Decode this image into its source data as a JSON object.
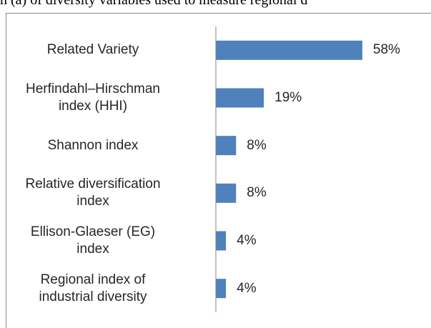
{
  "caption": "n (a) of diversity variables used to measure regional d",
  "chart_data": {
    "type": "bar",
    "orientation": "horizontal",
    "categories": [
      "Related Variety",
      "Herfindahl–Hirschman\nindex (HHI)",
      "Shannon index",
      "Relative diversification\nindex",
      "Ellison-Glaeser (EG)\nindex",
      "Regional index of\nindustrial diversity"
    ],
    "values": [
      58,
      19,
      8,
      8,
      4,
      4
    ],
    "value_labels": [
      "58%",
      "19%",
      "8%",
      "8%",
      "4%",
      "4%"
    ],
    "color": "#4f81bd",
    "xlim": [
      0,
      60
    ]
  }
}
